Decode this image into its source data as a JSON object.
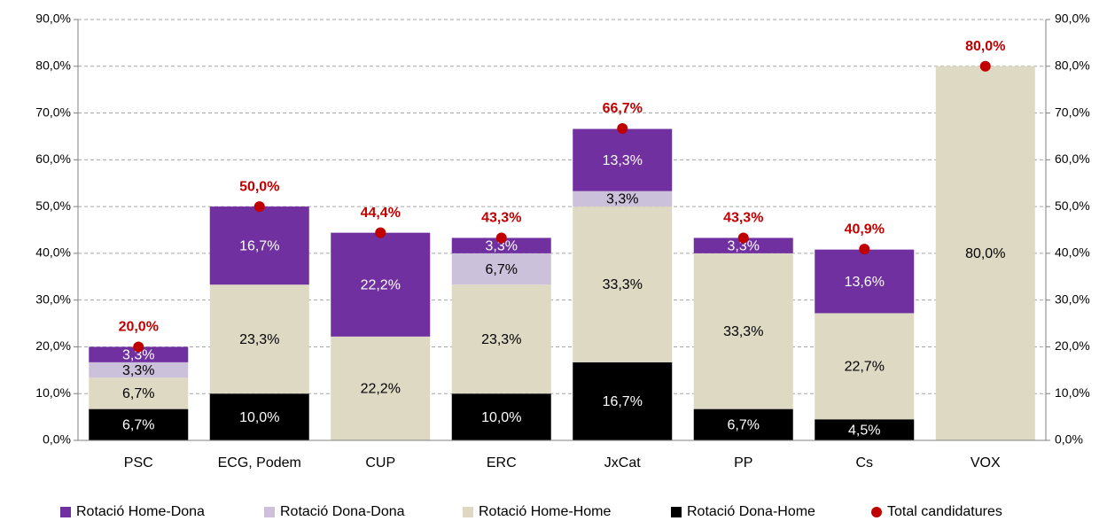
{
  "chart_data": {
    "type": "bar",
    "categories": [
      "PSC",
      "ECG, Podem",
      "CUP",
      "ERC",
      "JxCat",
      "PP",
      "Cs",
      "VOX"
    ],
    "stacked": true,
    "series": [
      {
        "name": "Rotació Dona-Home",
        "color": "#000000",
        "label_color": "#ffffff",
        "values": [
          6.7,
          10.0,
          null,
          10.0,
          16.7,
          6.7,
          4.5,
          null
        ],
        "value_labels": [
          "6,7%",
          "10,0%",
          null,
          "10,0%",
          "16,7%",
          "6,7%",
          "4,5%",
          null
        ]
      },
      {
        "name": "Rotació Home-Home",
        "color": "#ddd9c3",
        "label_color": "#000000",
        "values": [
          6.7,
          23.3,
          22.2,
          23.3,
          33.3,
          33.3,
          22.7,
          80.0
        ],
        "value_labels": [
          "6,7%",
          "23,3%",
          "22,2%",
          "23,3%",
          "33,3%",
          "33,3%",
          "22,7%",
          "80,0%"
        ]
      },
      {
        "name": "Rotació Dona-Dona",
        "color": "#ccc1da",
        "label_color": "#000000",
        "values": [
          3.3,
          null,
          null,
          6.7,
          3.3,
          null,
          null,
          null
        ],
        "value_labels": [
          "3,3%",
          null,
          null,
          "6,7%",
          "3,3%",
          null,
          null,
          null
        ]
      },
      {
        "name": "Rotació Home-Dona",
        "color": "#7030a0",
        "label_color": "#ffffff",
        "values": [
          3.3,
          16.7,
          22.2,
          3.3,
          13.3,
          3.3,
          13.6,
          null
        ],
        "value_labels": [
          "3,3%",
          "16,7%",
          "22,2%",
          "3,3%",
          "13,3%",
          "3,3%",
          "13,6%",
          null
        ]
      },
      {
        "name": "Total candidatures",
        "type": "scatter",
        "color": "#c00000",
        "axis": "y2",
        "values": [
          20.0,
          50.0,
          44.4,
          43.3,
          66.7,
          43.3,
          40.9,
          80.0
        ],
        "value_labels": [
          "20,0%",
          "50,0%",
          "44,4%",
          "43,3%",
          "66,7%",
          "43,3%",
          "40,9%",
          "80,0%"
        ]
      }
    ],
    "legend_order": [
      3,
      2,
      1,
      0,
      4
    ],
    "ylim": [
      0,
      90
    ],
    "yticks": [
      {
        "value": 0,
        "label": "0,0%"
      },
      {
        "value": 10,
        "label": "10,0%"
      },
      {
        "value": 20,
        "label": "20,0%"
      },
      {
        "value": 30,
        "label": "30,0%"
      },
      {
        "value": 40,
        "label": "40,0%"
      },
      {
        "value": 50,
        "label": "50,0%"
      },
      {
        "value": 60,
        "label": "60,0%"
      },
      {
        "value": 70,
        "label": "70,0%"
      },
      {
        "value": 80,
        "label": "80,0%"
      },
      {
        "value": 90,
        "label": "90,0%"
      }
    ],
    "y2lim": [
      0,
      90
    ],
    "y2ticks": [
      {
        "value": 0,
        "label": "0,0%"
      },
      {
        "value": 10,
        "label": "10,0%"
      },
      {
        "value": 20,
        "label": "20,0%"
      },
      {
        "value": 30,
        "label": "30,0%"
      },
      {
        "value": 40,
        "label": "40,0%"
      },
      {
        "value": 50,
        "label": "50,0%"
      },
      {
        "value": 60,
        "label": "60,0%"
      },
      {
        "value": 70,
        "label": "70,0%"
      },
      {
        "value": 80,
        "label": "80,0%"
      },
      {
        "value": 90,
        "label": "90,0%"
      }
    ],
    "grid": true,
    "legend": "bottom"
  }
}
